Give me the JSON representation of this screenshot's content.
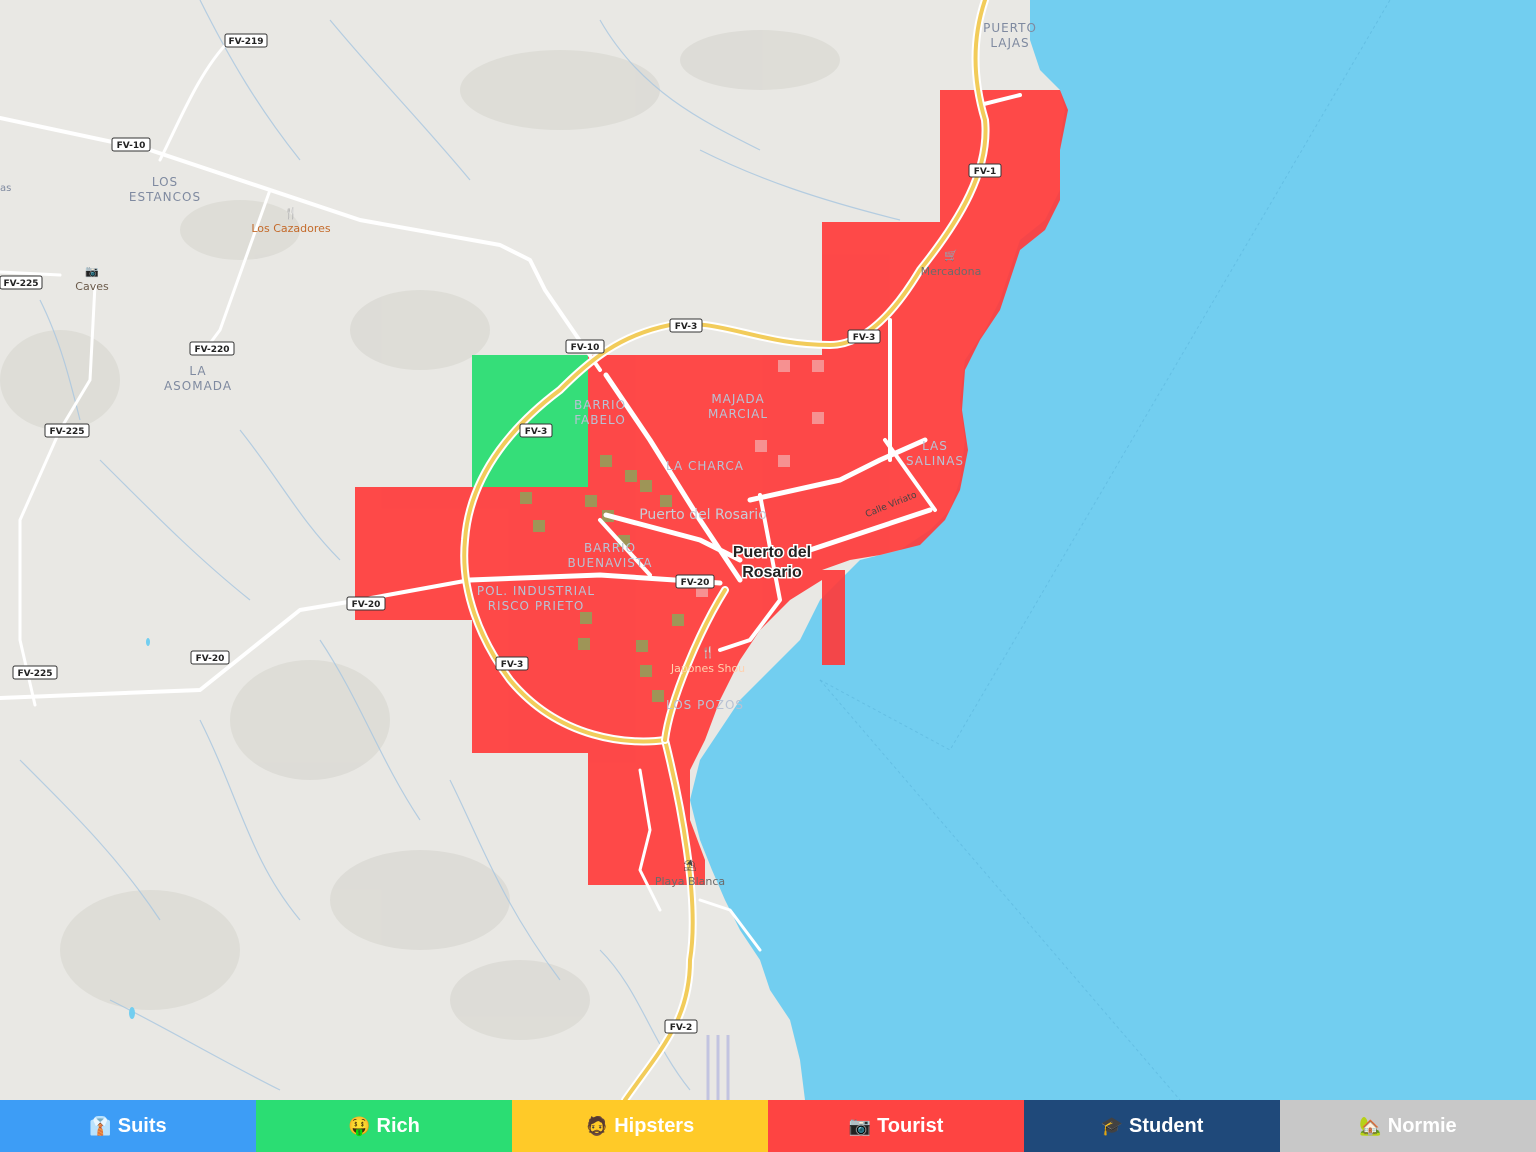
{
  "map": {
    "colors": {
      "land": "#e9e8e4",
      "sea": "#72cef0",
      "tourist": "#ff3b3b",
      "rich": "#2bdd73",
      "road": "#ffffff",
      "highway": "#f2cc5a"
    },
    "places": {
      "los_estancos_1": "LOS",
      "los_estancos_2": "ESTANCOS",
      "la_asomada_1": "LA",
      "la_asomada_2": "ASOMADA",
      "puerto_lajas_1": "PUERTO",
      "puerto_lajas_2": "LAJAS",
      "barrio_fabelo_1": "BARRIO",
      "barrio_fabelo_2": "FABELO",
      "majada_marcial_1": "MAJADA",
      "majada_marcial_2": "MARCIAL",
      "la_charca": "LA CHARCA",
      "las_salinas_1": "LAS",
      "las_salinas_2": "SALINAS",
      "barrio_buenavista_1": "BARRIO",
      "barrio_buenavista_2": "BUENAVISTA",
      "pol_industrial_1": "POL. INDUSTRIAL",
      "pol_industrial_2": "RISCO PRIETO",
      "los_pozos": "LOS POZOS",
      "puerto_del_rosario_area": "Puerto del Rosario",
      "city_1": "Puerto del",
      "city_2": "Rosario",
      "calle_viriato": "Calle Viriato",
      "partial_left": "as"
    },
    "pois": {
      "los_cazadores": "Los Cazadores",
      "caves": "Caves",
      "mercadona": "Mercadona",
      "japones_shou": "Japones Shou",
      "playa_blanca": "Playa Blanca"
    },
    "roads": {
      "fv219": "FV-219",
      "fv10_a": "FV-10",
      "fv10_b": "FV-10",
      "fv225_a": "FV-225",
      "fv225_b": "FV-225",
      "fv225_c": "FV-225",
      "fv220": "FV-220",
      "fv3_a": "FV-3",
      "fv3_b": "FV-3",
      "fv3_c": "FV-3",
      "fv3_d": "FV-3",
      "fv1": "FV-1",
      "fv20_a": "FV-20",
      "fv20_b": "FV-20",
      "fv20_c": "FV-20",
      "fv2": "FV-2"
    }
  },
  "legend": [
    {
      "emoji": "👔",
      "label": "Suits",
      "color": "#3d9df6"
    },
    {
      "emoji": "🤑",
      "label": "Rich",
      "color": "#2bdd73"
    },
    {
      "emoji": "🧔",
      "label": "Hipsters",
      "color": "#ffca28"
    },
    {
      "emoji": "📷",
      "label": "Tourist",
      "color": "#fe4442"
    },
    {
      "emoji": "🎓",
      "label": "Student",
      "color": "#1f497a"
    },
    {
      "emoji": "🏡",
      "label": "Normie",
      "color": "#c8c8c8"
    }
  ]
}
